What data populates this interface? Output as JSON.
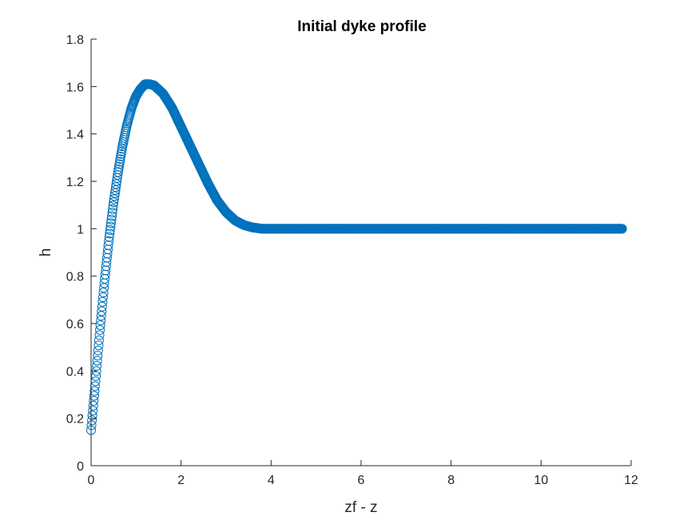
{
  "chart_data": {
    "type": "scatter",
    "title": "Initial dyke profile",
    "xlabel": "zf - z",
    "ylabel": "h",
    "xlim": [
      0,
      12
    ],
    "ylim": [
      0,
      1.8
    ],
    "xticks": [
      0,
      2,
      4,
      6,
      8,
      10,
      12
    ],
    "xtick_labels": [
      "0",
      "2",
      "4",
      "6",
      "8",
      "10",
      "12"
    ],
    "yticks": [
      0,
      0.2,
      0.4,
      0.6,
      0.8,
      1,
      1.2,
      1.4,
      1.6,
      1.8
    ],
    "ytick_labels": [
      "0",
      "0.2",
      "0.4",
      "0.6",
      "0.8",
      "1",
      "1.2",
      "1.4",
      "1.6",
      "1.8"
    ],
    "marker": "circle",
    "color": "#0072BD",
    "series": [
      {
        "name": "h",
        "x": [
          0.0,
          0.1,
          0.2,
          0.3,
          0.4,
          0.5,
          0.6,
          0.7,
          0.8,
          0.9,
          1.0,
          1.1,
          1.2,
          1.3,
          1.4,
          1.6,
          1.8,
          2.0,
          2.2,
          2.4,
          2.6,
          2.8,
          3.0,
          3.2,
          3.4,
          3.6,
          3.8,
          4.0,
          6.0,
          8.0,
          10.0,
          11.8
        ],
        "values": [
          0.15,
          0.36,
          0.58,
          0.78,
          0.96,
          1.11,
          1.24,
          1.35,
          1.44,
          1.51,
          1.56,
          1.59,
          1.61,
          1.61,
          1.605,
          1.57,
          1.51,
          1.43,
          1.35,
          1.27,
          1.19,
          1.12,
          1.07,
          1.035,
          1.015,
          1.005,
          1.0,
          1.0,
          1.0,
          1.0,
          1.0,
          1.0
        ]
      }
    ]
  }
}
